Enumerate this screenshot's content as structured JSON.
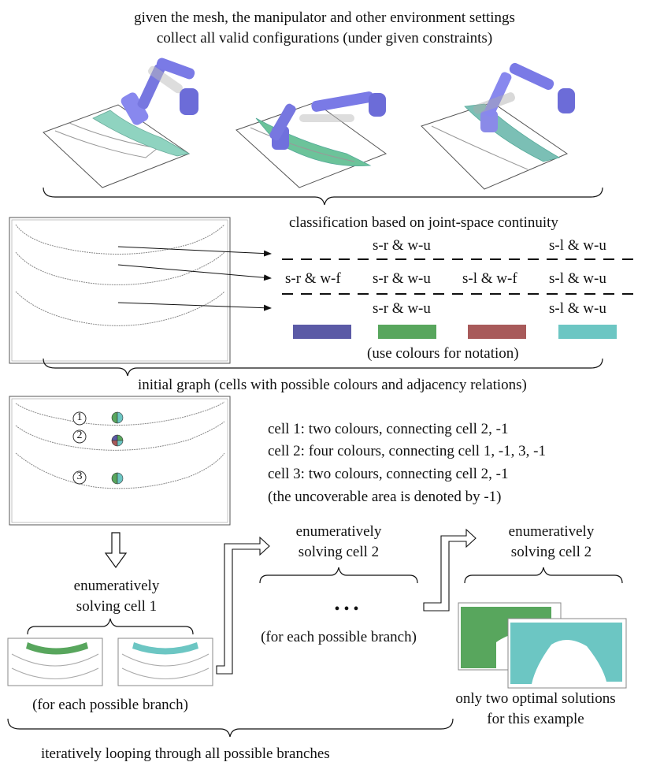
{
  "header": {
    "line1": "given the mesh, the manipulator and other environment settings",
    "line2": "collect all valid configurations (under given constraints)"
  },
  "classification": {
    "title": "classification based on joint-space continuity",
    "row1": [
      "s-r & w-u",
      "s-l & w-u"
    ],
    "row2": [
      "s-r & w-f",
      "s-r & w-u",
      "s-l & w-f",
      "s-l & w-u"
    ],
    "row3": [
      "s-r & w-u",
      "s-l & w-u"
    ],
    "swatch_colors": [
      "#5b5aa6",
      "#58a65d",
      "#a85a5a",
      "#6cc6c3"
    ],
    "note": "(use colours for notation)"
  },
  "graph": {
    "caption": "initial graph (cells with possible colours and adjacency relations)",
    "cell_labels": [
      "1",
      "2",
      "3"
    ],
    "cells": [
      "cell 1: two colours, connecting cell 2, -1",
      "cell 2: four colours, connecting cell 1, -1, 3, -1",
      "cell 3: two colours, connecting cell 2, -1",
      "(the uncoverable area is denoted by -1)"
    ]
  },
  "solve": {
    "step1_line1": "enumeratively",
    "step1_line2": "solving  cell 1",
    "step2_line1": "enumeratively",
    "step2_line2": "solving  cell 2",
    "step3_line1": "enumeratively",
    "step3_line2": "solving  cell 2",
    "ellipsis": "• • •",
    "branch_left": "(for each possible branch)",
    "branch_middle": "(for each possible branch)",
    "optimal_line1": "only two optimal solutions",
    "optimal_line2": "for this example",
    "footer": "iteratively looping through all possible branches"
  }
}
